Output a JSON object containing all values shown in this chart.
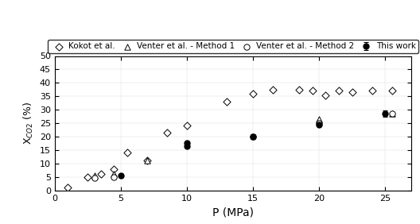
{
  "kokot_x": [
    1.0,
    2.5,
    3.5,
    4.5,
    5.5,
    7.0,
    8.5,
    10.0,
    13.0,
    15.0,
    16.5,
    18.5,
    19.5,
    20.5,
    21.5,
    22.5,
    24.0,
    25.5
  ],
  "kokot_y": [
    1.0,
    5.0,
    6.0,
    8.0,
    14.0,
    11.0,
    21.5,
    24.0,
    33.0,
    36.0,
    37.5,
    37.5,
    37.0,
    35.5,
    37.0,
    36.5,
    37.0,
    37.0
  ],
  "venter1_x": [
    3.0,
    4.5,
    7.0,
    20.0,
    25.5
  ],
  "venter1_y": [
    5.5,
    6.0,
    11.0,
    26.5,
    28.5
  ],
  "venter2_x": [
    3.0,
    4.5,
    15.0,
    20.0,
    25.5
  ],
  "venter2_y": [
    4.5,
    5.0,
    20.0,
    25.0,
    28.5
  ],
  "thiswork_x": [
    5.0,
    10.0,
    10.0,
    15.0,
    20.0,
    25.0
  ],
  "thiswork_y": [
    5.5,
    17.5,
    16.5,
    20.0,
    24.5,
    28.5
  ],
  "thiswork_yerr": [
    0.6,
    0.7,
    0.7,
    1.0,
    0.8,
    1.2
  ],
  "xlabel": "P (MPa)",
  "ylabel": "X$_{{CO2}}$ (%)",
  "xlim": [
    0,
    27
  ],
  "ylim": [
    0,
    50
  ],
  "xticks": [
    0,
    5,
    10,
    15,
    20,
    25
  ],
  "yticks": [
    0,
    5,
    10,
    15,
    20,
    25,
    30,
    35,
    40,
    45,
    50
  ],
  "legend_labels": [
    "Kokot et al.",
    "Venter et al. - Method 1",
    "Venter et al. - Method 2",
    "This work"
  ],
  "bg_color": "#ffffff"
}
